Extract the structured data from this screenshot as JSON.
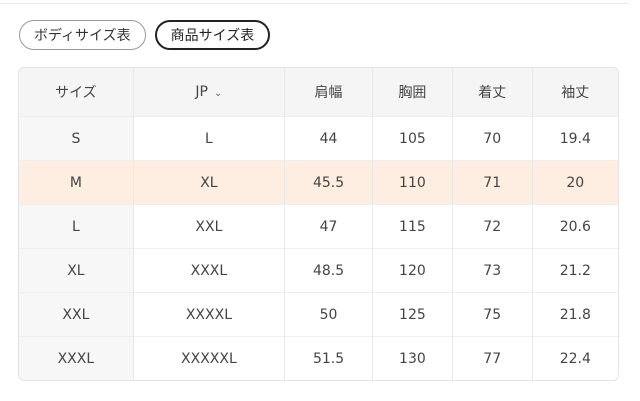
{
  "tabs": [
    {
      "label": "ボディサイズ表",
      "active": false
    },
    {
      "label": "商品サイズ表",
      "active": true
    }
  ],
  "table": {
    "headers": [
      "サイズ",
      "JP",
      "肩幅",
      "胸囲",
      "着丈",
      "袖丈"
    ],
    "jp_dropdown_icon": "chevron-down-icon",
    "highlight_color": "#fdeee1",
    "rows": [
      [
        "S",
        "L",
        "44",
        "105",
        "70",
        "19.4"
      ],
      [
        "M",
        "XL",
        "45.5",
        "110",
        "71",
        "20"
      ],
      [
        "L",
        "XXL",
        "47",
        "115",
        "72",
        "20.6"
      ],
      [
        "XL",
        "XXXL",
        "48.5",
        "120",
        "73",
        "21.2"
      ],
      [
        "XXL",
        "XXXXL",
        "50",
        "125",
        "75",
        "21.8"
      ],
      [
        "XXXL",
        "XXXXXL",
        "51.5",
        "130",
        "77",
        "22.4"
      ]
    ],
    "highlighted_row": 1
  }
}
